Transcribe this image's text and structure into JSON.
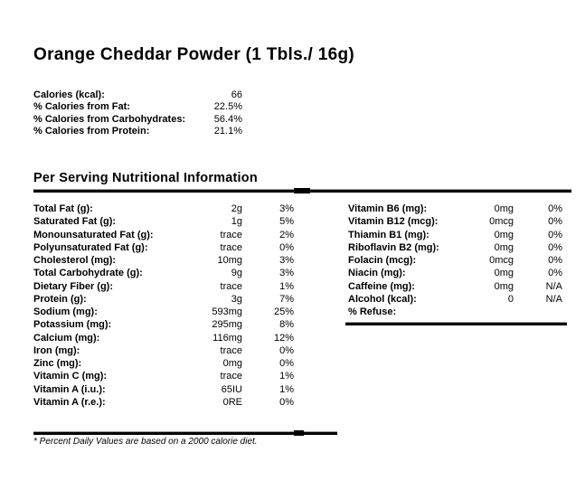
{
  "page": {
    "title": "Orange Cheddar Powder (1 Tbls./ 16g)",
    "section_heading": "Per Serving Nutritional Information",
    "footnote": "* Percent Daily Values are based on a 2000 calorie diet."
  },
  "colors": {
    "text": "#000000",
    "background": "#ffffff",
    "rule": "#000000"
  },
  "summary": {
    "rows": [
      {
        "label": "Calories (kcal):",
        "value": "66"
      },
      {
        "label": "% Calories from Fat:",
        "value": "22.5%"
      },
      {
        "label": "% Calories from Carbohydrates:",
        "value": "56.4%"
      },
      {
        "label": "% Calories from Protein:",
        "value": "21.1%"
      }
    ]
  },
  "nutrition": {
    "left": [
      {
        "label": "Total Fat (g):",
        "value": "2g",
        "dv": "3%"
      },
      {
        "label": "Saturated Fat (g):",
        "value": "1g",
        "dv": "5%"
      },
      {
        "label": "Monounsaturated Fat (g):",
        "value": "trace",
        "dv": "2%"
      },
      {
        "label": "Polyunsaturated Fat (g):",
        "value": "trace",
        "dv": "0%"
      },
      {
        "label": "Cholesterol (mg):",
        "value": "10mg",
        "dv": "3%"
      },
      {
        "label": "Total Carbohydrate (g):",
        "value": "9g",
        "dv": "3%"
      },
      {
        "label": "Dietary Fiber (g):",
        "value": "trace",
        "dv": "1%"
      },
      {
        "label": "Protein (g):",
        "value": "3g",
        "dv": "7%"
      },
      {
        "label": "Sodium (mg):",
        "value": "593mg",
        "dv": "25%"
      },
      {
        "label": "Potassium (mg):",
        "value": "295mg",
        "dv": "8%"
      },
      {
        "label": "Calcium (mg):",
        "value": "116mg",
        "dv": "12%"
      },
      {
        "label": "Iron (mg):",
        "value": "trace",
        "dv": "0%"
      },
      {
        "label": "Zinc (mg):",
        "value": "0mg",
        "dv": "0%"
      },
      {
        "label": "Vitamin C (mg):",
        "value": "trace",
        "dv": "1%"
      },
      {
        "label": "Vitamin A (i.u.):",
        "value": "65IU",
        "dv": "1%"
      },
      {
        "label": "Vitamin A (r.e.):",
        "value": "0RE",
        "dv": "0%"
      }
    ],
    "right": [
      {
        "label": "Vitamin B6 (mg):",
        "value": "0mg",
        "dv": "0%"
      },
      {
        "label": "Vitamin B12 (mcg):",
        "value": "0mcg",
        "dv": "0%"
      },
      {
        "label": "Thiamin B1 (mg):",
        "value": "0mg",
        "dv": "0%"
      },
      {
        "label": "Riboflavin B2 (mg):",
        "value": "0mg",
        "dv": "0%"
      },
      {
        "label": "Folacin (mcg):",
        "value": "0mcg",
        "dv": "0%"
      },
      {
        "label": "Niacin (mg):",
        "value": "0mg",
        "dv": "0%"
      },
      {
        "label": "Caffeine (mg):",
        "value": "0mg",
        "dv": "N/A"
      },
      {
        "label": "Alcohol (kcal):",
        "value": "0",
        "dv": "N/A"
      },
      {
        "label": "% Refuse:",
        "value": "",
        "dv": ""
      }
    ]
  }
}
